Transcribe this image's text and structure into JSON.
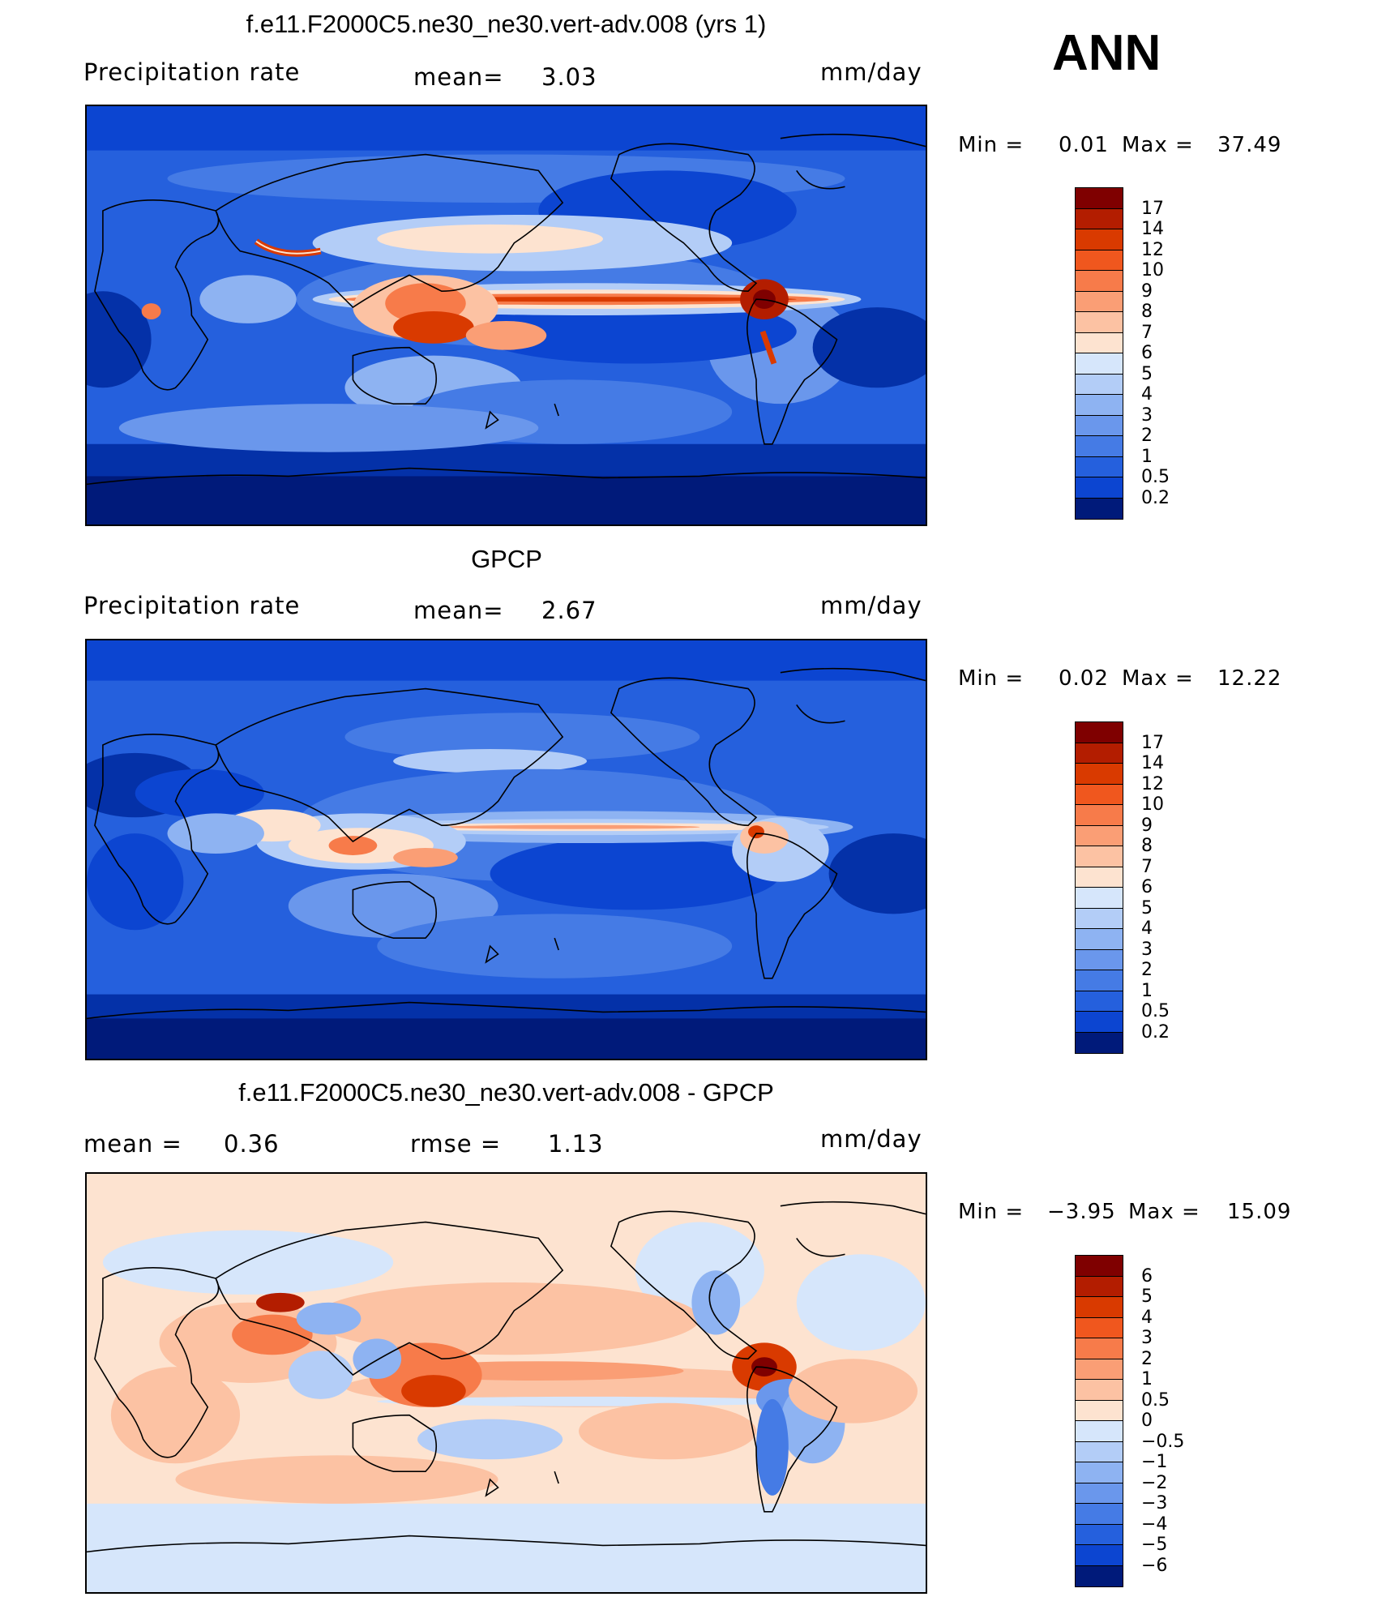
{
  "season": "ANN",
  "panels": [
    {
      "title": "f.e11.F2000C5.ne30_ne30.vert-adv.008 (yrs 1)",
      "left_label": "Precipitation rate",
      "mid_label": "mean=",
      "mid_value": "3.03",
      "units": "mm/day",
      "min_label": "Min =",
      "min_value": "0.01",
      "max_label": "Max =",
      "max_value": "37.49",
      "colorbar": {
        "labels": [
          "17",
          "14",
          "12",
          "10",
          "9",
          "8",
          "7",
          "6",
          "5",
          "4",
          "3",
          "2",
          "1",
          "0.5",
          "0.2"
        ],
        "colors": [
          "#7f0000",
          "#b31d00",
          "#d93a00",
          "#f0571e",
          "#f77b4a",
          "#fa9e75",
          "#fcc2a3",
          "#fde3d0",
          "#d6e6fb",
          "#b3cdf7",
          "#8eb3f2",
          "#6a97ec",
          "#457be5",
          "#2560dd",
          "#0c45d1",
          "#0431a8",
          "#001a7a"
        ]
      }
    },
    {
      "title": "GPCP",
      "left_label": "Precipitation rate",
      "mid_label": "mean=",
      "mid_value": "2.67",
      "units": "mm/day",
      "min_label": "Min =",
      "min_value": "0.02",
      "max_label": "Max =",
      "max_value": "12.22",
      "colorbar": {
        "labels": [
          "17",
          "14",
          "12",
          "10",
          "9",
          "8",
          "7",
          "6",
          "5",
          "4",
          "3",
          "2",
          "1",
          "0.5",
          "0.2"
        ],
        "colors": [
          "#7f0000",
          "#b31d00",
          "#d93a00",
          "#f0571e",
          "#f77b4a",
          "#fa9e75",
          "#fcc2a3",
          "#fde3d0",
          "#d6e6fb",
          "#b3cdf7",
          "#8eb3f2",
          "#6a97ec",
          "#457be5",
          "#2560dd",
          "#0c45d1",
          "#0431a8",
          "#001a7a"
        ]
      }
    },
    {
      "title": "f.e11.F2000C5.ne30_ne30.vert-adv.008 - GPCP",
      "left_label": "mean =",
      "left_value": "0.36",
      "mid_label": "rmse =",
      "mid_value": "1.13",
      "units": "mm/day",
      "min_label": "Min =",
      "min_value": "−3.95",
      "max_label": "Max =",
      "max_value": "15.09",
      "colorbar": {
        "labels": [
          "6",
          "5",
          "4",
          "3",
          "2",
          "1",
          "0.5",
          "0",
          "−0.5",
          "−1",
          "−2",
          "−3",
          "−4",
          "−5",
          "−6"
        ],
        "colors": [
          "#7f0000",
          "#b31d00",
          "#d93a00",
          "#f0571e",
          "#f77b4a",
          "#fa9e75",
          "#fcc2a3",
          "#fde3d0",
          "#d6e6fb",
          "#b3cdf7",
          "#8eb3f2",
          "#6a97ec",
          "#457be5",
          "#2560dd",
          "#0c45d1",
          "#0431a8",
          "#001a7a"
        ]
      }
    }
  ]
}
